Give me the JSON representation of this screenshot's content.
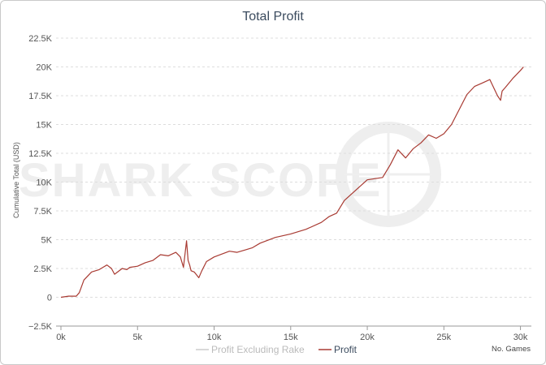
{
  "chart_data": {
    "type": "line",
    "title": "Total Profit",
    "ylabel": "Cumulative Total (USD)",
    "xlabel": "No. Games",
    "watermark": "SHARK SCOPE",
    "xlim": [
      0,
      30500
    ],
    "ylim": [
      -2500,
      22500
    ],
    "x_ticks": [
      0,
      5000,
      10000,
      15000,
      20000,
      25000,
      30000
    ],
    "x_tick_labels": [
      "0k",
      "5k",
      "10k",
      "15k",
      "20k",
      "25k",
      "30k"
    ],
    "y_ticks": [
      -2500,
      0,
      2500,
      5000,
      7500,
      10000,
      12500,
      15000,
      17500,
      20000,
      22500
    ],
    "y_tick_labels": [
      "−2.5K",
      "0",
      "2.5K",
      "5K",
      "7.5K",
      "10K",
      "12.5K",
      "15K",
      "17.5K",
      "20K",
      "22.5K"
    ],
    "grid": "horizontal-dashed",
    "legend_position": "bottom-center",
    "series": [
      {
        "name": "Profit Excluding Rake",
        "color": "#cccccc",
        "x": [],
        "values": []
      },
      {
        "name": "Profit",
        "color": "#a83a32",
        "x": [
          0,
          500,
          1000,
          1200,
          1500,
          2000,
          2500,
          3000,
          3300,
          3500,
          4000,
          4300,
          4500,
          5000,
          5500,
          6000,
          6500,
          7000,
          7500,
          7800,
          8000,
          8200,
          8300,
          8400,
          8500,
          8700,
          9000,
          9200,
          9500,
          10000,
          11000,
          11500,
          12000,
          12500,
          13000,
          14000,
          15000,
          16000,
          17000,
          17500,
          18000,
          18500,
          19000,
          19500,
          20000,
          21000,
          21500,
          22000,
          22500,
          23000,
          23500,
          24000,
          24500,
          25000,
          25500,
          26000,
          26500,
          27000,
          27500,
          28000,
          28500,
          28700,
          28800,
          29000,
          29500,
          30000,
          30200
        ],
        "values": [
          0,
          100,
          100,
          400,
          1500,
          2200,
          2400,
          2800,
          2500,
          2000,
          2500,
          2400,
          2600,
          2700,
          3000,
          3200,
          3700,
          3600,
          3900,
          3500,
          2600,
          4900,
          3200,
          2800,
          2300,
          2200,
          1700,
          2300,
          3100,
          3500,
          4000,
          3900,
          4100,
          4300,
          4700,
          5200,
          5500,
          5900,
          6500,
          7000,
          7300,
          8400,
          9000,
          9600,
          10200,
          10400,
          11500,
          12800,
          12100,
          12900,
          13400,
          14100,
          13800,
          14200,
          15000,
          16300,
          17600,
          18300,
          18600,
          18900,
          17500,
          17100,
          17900,
          18200,
          19000,
          19700,
          20000
        ]
      }
    ]
  }
}
